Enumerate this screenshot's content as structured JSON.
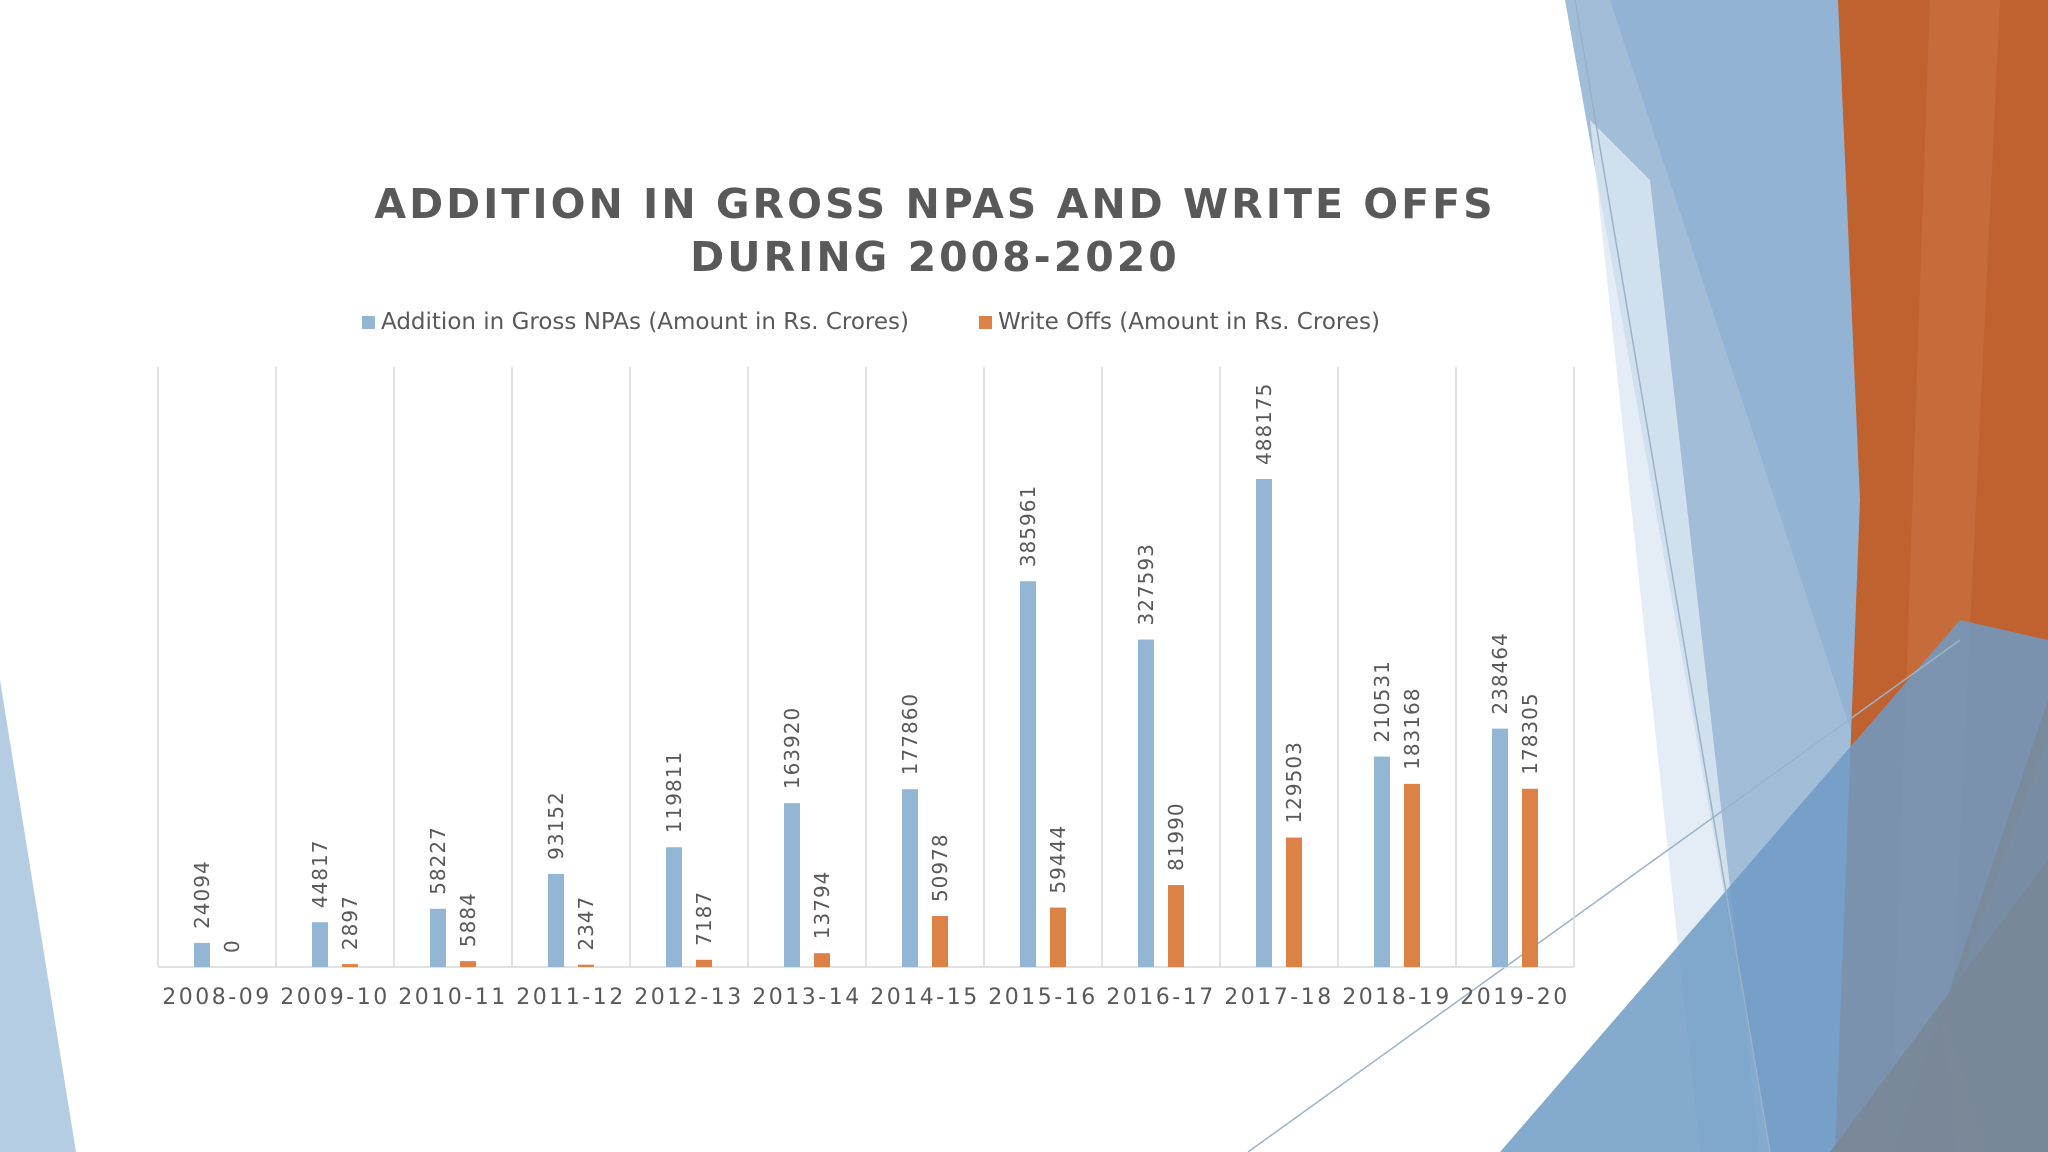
{
  "slide": {
    "title": "ADDITION IN  GROSS NPAS AND WRITE OFFS\nDURING 2008-2020",
    "colors": {
      "background": "#ffffff",
      "decor_light_blue": "#a2bdd8",
      "decor_mid_blue": "#6f9bc6",
      "decor_orange": "#c0622f",
      "decor_slate": "#7a8797"
    }
  },
  "chart_data": {
    "type": "bar",
    "title": "ADDITION IN  GROSS NPAS AND WRITE OFFS\nDURING 2008-2020",
    "categories": [
      "2008-09",
      "2009-10",
      "2010-11",
      "2011-12",
      "2012-13",
      "2013-14",
      "2014-15",
      "2015-16",
      "2016-17",
      "2017-18",
      "2018-19",
      "2019-20"
    ],
    "series": [
      {
        "name": "Addition in Gross NPAs (Amount in Rs. Crores)",
        "color": "#92b6d3",
        "values": [
          24094,
          44817,
          58227,
          93152,
          119811,
          163920,
          177860,
          385961,
          327593,
          488175,
          210531,
          238464
        ]
      },
      {
        "name": "Write Offs (Amount in Rs. Crores)",
        "color": "#dd8247",
        "values": [
          0,
          2897,
          5884,
          2347,
          7187,
          13794,
          50978,
          59444,
          81990,
          129503,
          183168,
          178305
        ]
      }
    ],
    "data_labels": true,
    "data_label_orientation": "vertical",
    "legend_position": "top",
    "grid": {
      "vertical_category_lines": true,
      "horizontal": false
    },
    "y_axis_visible": false,
    "xlabel": "",
    "ylabel": ""
  }
}
